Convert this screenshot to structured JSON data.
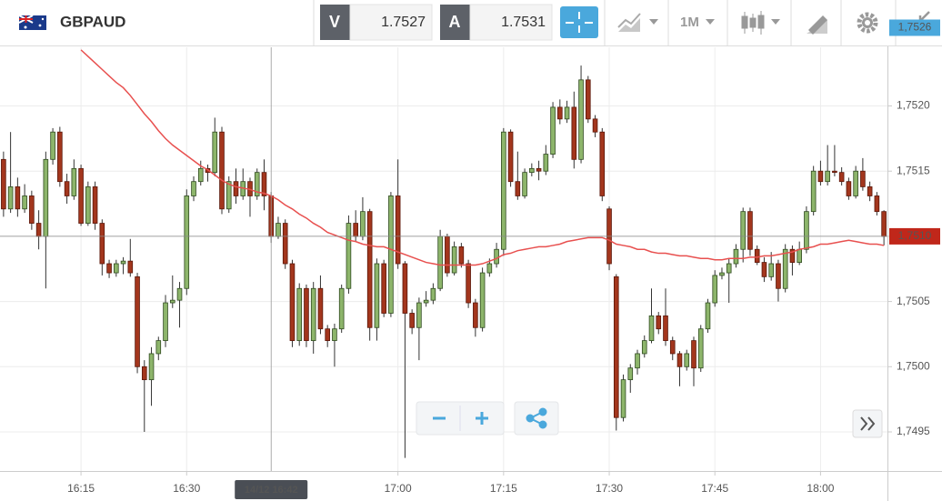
{
  "toolbar": {
    "symbol": "GBPAUD",
    "bid_label": "V",
    "bid": 1.7527,
    "ask_label": "A",
    "ask": 1.7531,
    "timeframe": "1M"
  },
  "chart_data": {
    "type": "candlestick",
    "categories": [
      null,
      null,
      null,
      null,
      null,
      null,
      null,
      null,
      null,
      null,
      null,
      "16:15",
      null,
      null,
      null,
      null,
      null,
      null,
      null,
      null,
      null,
      null,
      null,
      null,
      null,
      null,
      "16:30",
      null,
      null,
      null,
      null,
      null,
      null,
      null,
      null,
      null,
      null,
      null,
      null,
      null,
      null,
      null,
      null,
      null,
      null,
      null,
      null,
      null,
      null,
      null,
      null,
      null,
      null,
      null,
      null,
      null,
      "17:00",
      null,
      null,
      null,
      null,
      null,
      null,
      null,
      null,
      null,
      null,
      null,
      null,
      null,
      null,
      "17:15",
      null,
      null,
      null,
      null,
      null,
      null,
      null,
      null,
      null,
      null,
      null,
      null,
      null,
      null,
      "17:30",
      null,
      null,
      null,
      null,
      null,
      null,
      null,
      null,
      null,
      null,
      null,
      null,
      null,
      null,
      "17:45",
      null,
      null,
      null,
      null,
      null,
      null,
      null,
      null,
      null,
      null,
      null,
      null,
      null,
      null,
      "18:00",
      null,
      null,
      null,
      null,
      null,
      null,
      null,
      null,
      null
    ],
    "open": [
      1.75159,
      1.75121,
      1.75138,
      1.75121,
      1.75131,
      1.7511,
      1.751,
      1.75159,
      1.7518,
      1.75142,
      1.75131,
      1.75152,
      1.7511,
      1.75138,
      1.7511,
      1.75079,
      1.75072,
      1.75079,
      1.75081,
      1.75069,
      1.75,
      1.7499,
      1.7501,
      1.7502,
      1.75049,
      1.75051,
      1.7506,
      1.75131,
      1.75142,
      1.75152,
      1.75149,
      1.7518,
      1.75121,
      1.75142,
      1.75131,
      1.75142,
      1.75131,
      1.75149,
      1.75131,
      1.751,
      1.7511,
      1.75079,
      1.7502,
      1.7506,
      1.7502,
      1.7506,
      1.75029,
      1.7502,
      1.75029,
      1.7506,
      1.7511,
      1.751,
      1.75119,
      1.7503,
      1.75079,
      1.75041,
      1.75131,
      1.75079,
      1.75041,
      1.7503,
      1.75049,
      1.75051,
      1.7506,
      1.751,
      1.75072,
      1.75092,
      1.75079,
      1.75049,
      1.7503,
      1.75072,
      1.75079,
      1.7509,
      1.7518,
      1.75142,
      1.75131,
      1.75149,
      1.75152,
      1.7515,
      1.75163,
      1.75199,
      1.7519,
      1.75199,
      1.75159,
      1.7522,
      1.7519,
      1.7518,
      1.75121,
      1.75069,
      1.74961,
      1.7499,
      1.74999,
      1.7501,
      1.7502,
      1.75039,
      1.75039,
      1.7502,
      1.7501,
      1.75,
      1.7502,
      1.74999,
      1.75029,
      1.75049,
      1.7507,
      1.75072,
      1.75079,
      1.7509,
      1.75119,
      1.7509,
      1.7508,
      1.75069,
      1.75079,
      1.7506,
      1.7509,
      1.7508,
      1.7509,
      1.75119,
      1.7515,
      1.75142,
      1.7515,
      1.75149,
      1.75142,
      1.75131,
      1.7515,
      1.75138,
      1.75131,
      1.75119
    ],
    "high": [
      1.75165,
      1.7518,
      1.75145,
      1.7514,
      1.75135,
      1.7512,
      1.75165,
      1.75183,
      1.75184,
      1.75148,
      1.75159,
      1.75155,
      1.75142,
      1.75142,
      1.75113,
      1.75082,
      1.75082,
      1.75084,
      1.75098,
      1.75072,
      1.75005,
      1.75015,
      1.75023,
      1.75055,
      1.7507,
      1.75065,
      1.75136,
      1.75146,
      1.75158,
      1.75155,
      1.75191,
      1.75184,
      1.75146,
      1.75152,
      1.75152,
      1.75145,
      1.75152,
      1.75159,
      1.75134,
      1.75115,
      1.75113,
      1.75082,
      1.75064,
      1.75063,
      1.75065,
      1.7507,
      1.75032,
      1.75033,
      1.75063,
      1.75116,
      1.7512,
      1.7513,
      1.75121,
      1.75083,
      1.75082,
      1.75134,
      1.75159,
      1.75081,
      1.75044,
      1.75053,
      1.75058,
      1.75064,
      1.75105,
      1.75102,
      1.75096,
      1.75095,
      1.75082,
      1.75052,
      1.75076,
      1.75083,
      1.75095,
      1.75183,
      1.75182,
      1.75165,
      1.75152,
      1.75156,
      1.75158,
      1.7517,
      1.75203,
      1.75205,
      1.75204,
      1.75211,
      1.75231,
      1.75223,
      1.75193,
      1.75183,
      1.75123,
      1.75071,
      1.74994,
      1.75002,
      1.75013,
      1.75024,
      1.7506,
      1.75042,
      1.7506,
      1.75023,
      1.75012,
      1.75013,
      1.75023,
      1.75032,
      1.75052,
      1.75074,
      1.75076,
      1.75083,
      1.75094,
      1.75122,
      1.75122,
      1.75093,
      1.75084,
      1.75088,
      1.75082,
      1.75094,
      1.75093,
      1.75096,
      1.75123,
      1.75154,
      1.75158,
      1.7517,
      1.7517,
      1.75153,
      1.75145,
      1.75154,
      1.7516,
      1.75142,
      1.75134,
      1.7512
    ],
    "low": [
      1.75115,
      1.75118,
      1.75115,
      1.75118,
      1.75105,
      1.7509,
      1.7506,
      1.75155,
      1.75138,
      1.75125,
      1.75128,
      1.75108,
      1.75108,
      1.75105,
      1.7507,
      1.75068,
      1.75069,
      1.75071,
      1.75069,
      1.74995,
      1.7495,
      1.7497,
      1.75005,
      1.75015,
      1.75045,
      1.7503,
      1.75055,
      1.75127,
      1.75139,
      1.75142,
      1.75146,
      1.75117,
      1.75118,
      1.75125,
      1.75128,
      1.75115,
      1.75128,
      1.7512,
      1.75095,
      1.75098,
      1.75075,
      1.75015,
      1.75016,
      1.75015,
      1.7501,
      1.75025,
      1.75015,
      1.75,
      1.75026,
      1.75056,
      1.75096,
      1.75097,
      1.7502,
      1.7502,
      1.75038,
      1.75038,
      1.75075,
      1.7493,
      1.75025,
      1.75005,
      1.75046,
      1.75048,
      1.75058,
      1.75069,
      1.7507,
      1.75076,
      1.75045,
      1.75023,
      1.75027,
      1.75069,
      1.75076,
      1.75085,
      1.75138,
      1.75128,
      1.75129,
      1.75146,
      1.75143,
      1.75147,
      1.7516,
      1.75186,
      1.75187,
      1.75152,
      1.75156,
      1.75187,
      1.75176,
      1.75127,
      1.75074,
      1.74951,
      1.74958,
      1.7498,
      1.74994,
      1.75007,
      1.75018,
      1.75025,
      1.75016,
      1.75005,
      1.74985,
      1.74997,
      1.74985,
      1.74996,
      1.75026,
      1.75046,
      1.75067,
      1.75049,
      1.75076,
      1.7508,
      1.75085,
      1.75078,
      1.75065,
      1.75066,
      1.7505,
      1.75057,
      1.7507,
      1.75078,
      1.75087,
      1.75116,
      1.75139,
      1.75139,
      1.75146,
      1.75139,
      1.75128,
      1.75129,
      1.75135,
      1.75127,
      1.75116,
      1.75093
    ],
    "close": [
      1.75121,
      1.75138,
      1.75121,
      1.75131,
      1.7511,
      1.751,
      1.75159,
      1.7518,
      1.75142,
      1.75131,
      1.75152,
      1.7511,
      1.75138,
      1.7511,
      1.75079,
      1.75072,
      1.75079,
      1.75081,
      1.75072,
      1.75,
      1.7499,
      1.7501,
      1.7502,
      1.75049,
      1.75051,
      1.7506,
      1.75131,
      1.75142,
      1.75152,
      1.75149,
      1.7518,
      1.75121,
      1.75142,
      1.75131,
      1.75142,
      1.75131,
      1.75149,
      1.75131,
      1.751,
      1.7511,
      1.75079,
      1.7502,
      1.7506,
      1.7502,
      1.7506,
      1.75029,
      1.7502,
      1.75029,
      1.7506,
      1.7511,
      1.751,
      1.75119,
      1.7503,
      1.75079,
      1.75041,
      1.75131,
      1.75079,
      1.75041,
      1.7503,
      1.75049,
      1.75051,
      1.7506,
      1.751,
      1.75072,
      1.75092,
      1.75079,
      1.75049,
      1.7503,
      1.75072,
      1.75079,
      1.7509,
      1.7518,
      1.75142,
      1.75131,
      1.75149,
      1.75152,
      1.7515,
      1.75163,
      1.75199,
      1.7519,
      1.75199,
      1.75159,
      1.7522,
      1.7519,
      1.7518,
      1.75131,
      1.75079,
      1.74961,
      1.7499,
      1.74999,
      1.7501,
      1.7502,
      1.75039,
      1.75029,
      1.7502,
      1.7501,
      1.75,
      1.7501,
      1.74999,
      1.75029,
      1.75049,
      1.7507,
      1.75072,
      1.75079,
      1.7509,
      1.75119,
      1.7509,
      1.7508,
      1.75069,
      1.75079,
      1.7506,
      1.7509,
      1.7508,
      1.7509,
      1.75119,
      1.7515,
      1.75142,
      1.7515,
      1.75149,
      1.75142,
      1.75131,
      1.7515,
      1.75138,
      1.75131,
      1.75119,
      1.751
    ],
    "colors": {
      "up": "#8db56b",
      "down": "#a3361d"
    },
    "moving_average": {
      "color": "#e8504f",
      "values": [
        null,
        null,
        null,
        null,
        null,
        null,
        null,
        null,
        null,
        null,
        null,
        1.75243,
        1.75238,
        1.75233,
        1.75228,
        1.75223,
        1.75218,
        1.75214,
        1.75208,
        1.75201,
        1.75194,
        1.75188,
        1.75181,
        1.75175,
        1.7517,
        1.75166,
        1.75162,
        1.75158,
        1.75154,
        1.75151,
        1.75147,
        1.75143,
        1.7514,
        1.75138,
        1.75137,
        1.75136,
        1.75134,
        1.75133,
        1.75131,
        1.75128,
        1.75124,
        1.75121,
        1.75117,
        1.75114,
        1.7511,
        1.75107,
        1.75103,
        1.75101,
        1.75099,
        1.75097,
        1.75096,
        1.75094,
        1.75093,
        1.75092,
        1.75092,
        1.7509,
        1.75088,
        1.75086,
        1.75084,
        1.75082,
        1.7508,
        1.75079,
        1.75078,
        1.75078,
        1.75078,
        1.75078,
        1.75078,
        1.75078,
        1.75079,
        1.75081,
        1.75083,
        1.75086,
        1.75087,
        1.75089,
        1.7509,
        1.75091,
        1.75092,
        1.75092,
        1.75093,
        1.75094,
        1.75096,
        1.75097,
        1.75098,
        1.75099,
        1.75099,
        1.75099,
        1.75097,
        1.75094,
        1.75093,
        1.75092,
        1.7509,
        1.7509,
        1.75088,
        1.75087,
        1.75087,
        1.75086,
        1.75085,
        1.75085,
        1.75084,
        1.75083,
        1.75083,
        1.75082,
        1.75082,
        1.75083,
        1.75083,
        1.75083,
        1.75084,
        1.75084,
        1.75085,
        1.75085,
        1.75086,
        1.75087,
        1.75088,
        1.7509,
        1.75091,
        1.75092,
        1.75094,
        1.75094,
        1.75095,
        1.75096,
        1.75097,
        1.75096,
        1.75095,
        1.75094,
        1.75094,
        1.75093
      ]
    },
    "ylim": [
      1.7492,
      1.75245
    ],
    "yticks": [
      {
        "value": 1.7495,
        "label": "1,7495"
      },
      {
        "value": 1.75,
        "label": "1,7500"
      },
      {
        "value": 1.7505,
        "label": "1,7505"
      },
      {
        "value": 1.751,
        "label": "1,7510"
      },
      {
        "value": 1.7515,
        "label": "1,7515"
      },
      {
        "value": 1.752,
        "label": "1,7520"
      }
    ],
    "grid": true,
    "price_labels": [
      {
        "value": 1.7526,
        "label": "1,7526",
        "color": "#4aa8dc"
      },
      {
        "value": 1.751,
        "label": "1,7510",
        "color": "#c0271a"
      }
    ],
    "crosshair_label": "14/12 16:42"
  }
}
